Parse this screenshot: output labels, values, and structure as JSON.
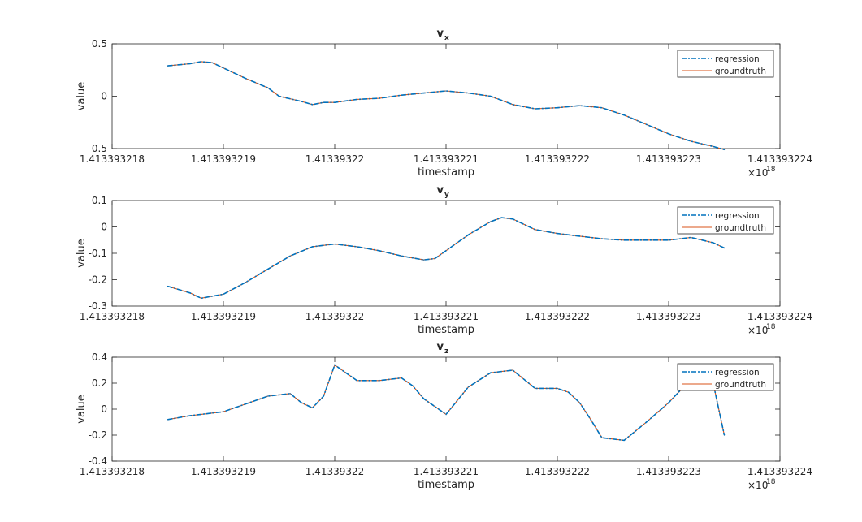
{
  "figure": {
    "background": "#ffffff",
    "axes_color": "#262626",
    "regression_color": "#0072bd",
    "groundtruth_color": "#d95319"
  },
  "chart_data": [
    {
      "type": "line",
      "title": "v",
      "title_subscript": "x",
      "xlabel": "timestamp",
      "ylabel": "value",
      "xlim": [
        1.413393218,
        1.413393224
      ],
      "ylim": [
        -0.5,
        0.5
      ],
      "xtick_labels": [
        "1.413393218",
        "1.413393219",
        "1.41339322",
        "1.413393221",
        "1.413393222",
        "1.413393223",
        "1.413393224"
      ],
      "ytick_labels": [
        "-0.5",
        "0",
        "0.5"
      ],
      "yticks": [
        -0.5,
        0,
        0.5
      ],
      "x_exponent_base": "×10",
      "x_exponent_power": "18",
      "legend": [
        "regression",
        "groundtruth"
      ],
      "legend_position": "top-right",
      "series": [
        {
          "name": "regression",
          "style": "dash-dot",
          "x": [
            1.4133932185,
            1.4133932187,
            1.4133932188,
            1.4133932189,
            1.413393219,
            1.4133932192,
            1.4133932194,
            1.4133932195,
            1.4133932197,
            1.4133932198,
            1.4133932199,
            1.41339322,
            1.4133932202,
            1.4133932204,
            1.4133932206,
            1.4133932208,
            1.413393221,
            1.4133932212,
            1.4133932214,
            1.4133932216,
            1.4133932218,
            1.413393222,
            1.4133932222,
            1.4133932224,
            1.4133932226,
            1.4133932228,
            1.413393223,
            1.4133932232,
            1.4133932234,
            1.4133932235
          ],
          "values": [
            0.29,
            0.31,
            0.33,
            0.32,
            0.27,
            0.17,
            0.08,
            0.0,
            -0.05,
            -0.08,
            -0.06,
            -0.06,
            -0.03,
            -0.02,
            0.01,
            0.03,
            0.05,
            0.03,
            0.0,
            -0.08,
            -0.12,
            -0.11,
            -0.09,
            -0.11,
            -0.18,
            -0.27,
            -0.36,
            -0.43,
            -0.48,
            -0.51
          ]
        },
        {
          "name": "groundtruth",
          "style": "solid",
          "x": [
            1.4133932185,
            1.4133932187,
            1.4133932188,
            1.4133932189,
            1.413393219,
            1.4133932192,
            1.4133932194,
            1.4133932195,
            1.4133932197,
            1.4133932198,
            1.4133932199,
            1.41339322,
            1.4133932202,
            1.4133932204,
            1.4133932206,
            1.4133932208,
            1.413393221,
            1.4133932212,
            1.4133932214,
            1.4133932216,
            1.4133932218,
            1.413393222,
            1.4133932222,
            1.4133932224,
            1.4133932226,
            1.4133932228,
            1.413393223,
            1.4133932232,
            1.4133932234,
            1.4133932235
          ],
          "values": [
            0.29,
            0.31,
            0.33,
            0.32,
            0.27,
            0.17,
            0.08,
            0.0,
            -0.05,
            -0.08,
            -0.06,
            -0.06,
            -0.03,
            -0.02,
            0.01,
            0.03,
            0.05,
            0.03,
            0.0,
            -0.08,
            -0.12,
            -0.11,
            -0.09,
            -0.11,
            -0.18,
            -0.27,
            -0.36,
            -0.43,
            -0.48,
            -0.51
          ]
        }
      ]
    },
    {
      "type": "line",
      "title": "v",
      "title_subscript": "y",
      "xlabel": "timestamp",
      "ylabel": "value",
      "xlim": [
        1.413393218,
        1.413393224
      ],
      "ylim": [
        -0.3,
        0.1
      ],
      "xtick_labels": [
        "1.413393218",
        "1.413393219",
        "1.41339322",
        "1.413393221",
        "1.413393222",
        "1.413393223",
        "1.413393224"
      ],
      "ytick_labels": [
        "-0.3",
        "-0.2",
        "-0.1",
        "0",
        "0.1"
      ],
      "yticks": [
        -0.3,
        -0.2,
        -0.1,
        0,
        0.1
      ],
      "x_exponent_base": "×10",
      "x_exponent_power": "18",
      "legend": [
        "regression",
        "groundtruth"
      ],
      "legend_position": "top-right",
      "series": [
        {
          "name": "regression",
          "style": "dash-dot",
          "x": [
            1.4133932185,
            1.4133932187,
            1.4133932188,
            1.413393219,
            1.4133932192,
            1.4133932194,
            1.4133932196,
            1.4133932198,
            1.41339322,
            1.4133932202,
            1.4133932204,
            1.4133932206,
            1.4133932208,
            1.4133932209,
            1.413393221,
            1.4133932212,
            1.4133932214,
            1.4133932215,
            1.4133932216,
            1.4133932218,
            1.413393222,
            1.4133932222,
            1.4133932224,
            1.4133932226,
            1.4133932228,
            1.413393223,
            1.4133932232,
            1.4133932234,
            1.4133932235
          ],
          "values": [
            -0.225,
            -0.25,
            -0.27,
            -0.255,
            -0.21,
            -0.16,
            -0.11,
            -0.075,
            -0.065,
            -0.075,
            -0.09,
            -0.11,
            -0.125,
            -0.12,
            -0.09,
            -0.03,
            0.02,
            0.035,
            0.03,
            -0.01,
            -0.025,
            -0.035,
            -0.045,
            -0.05,
            -0.05,
            -0.05,
            -0.04,
            -0.06,
            -0.08
          ]
        },
        {
          "name": "groundtruth",
          "style": "solid",
          "x": [
            1.4133932185,
            1.4133932187,
            1.4133932188,
            1.413393219,
            1.4133932192,
            1.4133932194,
            1.4133932196,
            1.4133932198,
            1.41339322,
            1.4133932202,
            1.4133932204,
            1.4133932206,
            1.4133932208,
            1.4133932209,
            1.413393221,
            1.4133932212,
            1.4133932214,
            1.4133932215,
            1.4133932216,
            1.4133932218,
            1.413393222,
            1.4133932222,
            1.4133932224,
            1.4133932226,
            1.4133932228,
            1.413393223,
            1.4133932232,
            1.4133932234,
            1.4133932235
          ],
          "values": [
            -0.225,
            -0.25,
            -0.27,
            -0.255,
            -0.21,
            -0.16,
            -0.11,
            -0.075,
            -0.065,
            -0.075,
            -0.09,
            -0.11,
            -0.125,
            -0.12,
            -0.09,
            -0.03,
            0.02,
            0.035,
            0.03,
            -0.01,
            -0.025,
            -0.035,
            -0.045,
            -0.05,
            -0.05,
            -0.05,
            -0.04,
            -0.06,
            -0.08
          ]
        }
      ]
    },
    {
      "type": "line",
      "title": "v",
      "title_subscript": "z",
      "xlabel": "timestamp",
      "ylabel": "value",
      "xlim": [
        1.413393218,
        1.413393224
      ],
      "ylim": [
        -0.4,
        0.4
      ],
      "xtick_labels": [
        "1.413393218",
        "1.413393219",
        "1.41339322",
        "1.413393221",
        "1.413393222",
        "1.413393223",
        "1.413393224"
      ],
      "ytick_labels": [
        "-0.4",
        "-0.2",
        "0",
        "0.2",
        "0.4"
      ],
      "yticks": [
        -0.4,
        -0.2,
        0,
        0.2,
        0.4
      ],
      "x_exponent_base": "×10",
      "x_exponent_power": "18",
      "legend": [
        "regression",
        "groundtruth"
      ],
      "legend_position": "top-right",
      "series": [
        {
          "name": "regression",
          "style": "dash-dot",
          "x": [
            1.4133932185,
            1.4133932187,
            1.4133932188,
            1.4133932189,
            1.413393219,
            1.4133932192,
            1.4133932194,
            1.4133932196,
            1.4133932197,
            1.4133932198,
            1.4133932199,
            1.41339322,
            1.4133932202,
            1.4133932204,
            1.4133932206,
            1.4133932207,
            1.4133932208,
            1.413393221,
            1.4133932212,
            1.4133932214,
            1.4133932216,
            1.4133932218,
            1.413393222,
            1.4133932221,
            1.4133932222,
            1.4133932223,
            1.4133932224,
            1.4133932226,
            1.4133932228,
            1.413393223,
            1.4133932232,
            1.4133932234,
            1.4133932235
          ],
          "values": [
            -0.08,
            -0.05,
            -0.04,
            -0.03,
            -0.02,
            0.04,
            0.1,
            0.12,
            0.05,
            0.01,
            0.1,
            0.34,
            0.22,
            0.22,
            0.24,
            0.18,
            0.08,
            -0.04,
            0.17,
            0.28,
            0.3,
            0.16,
            0.16,
            0.13,
            0.05,
            -0.08,
            -0.22,
            -0.24,
            -0.1,
            0.05,
            0.23,
            0.2,
            -0.2
          ]
        },
        {
          "name": "groundtruth",
          "style": "solid",
          "x": [
            1.4133932185,
            1.4133932187,
            1.4133932188,
            1.4133932189,
            1.413393219,
            1.4133932192,
            1.4133932194,
            1.4133932196,
            1.4133932197,
            1.4133932198,
            1.4133932199,
            1.41339322,
            1.4133932202,
            1.4133932204,
            1.4133932206,
            1.4133932207,
            1.4133932208,
            1.413393221,
            1.4133932212,
            1.4133932214,
            1.4133932216,
            1.4133932218,
            1.413393222,
            1.4133932221,
            1.4133932222,
            1.4133932223,
            1.4133932224,
            1.4133932226,
            1.4133932228,
            1.413393223,
            1.4133932232,
            1.4133932234,
            1.4133932235
          ],
          "values": [
            -0.08,
            -0.05,
            -0.04,
            -0.03,
            -0.02,
            0.04,
            0.1,
            0.12,
            0.05,
            0.01,
            0.1,
            0.34,
            0.22,
            0.22,
            0.24,
            0.18,
            0.08,
            -0.04,
            0.17,
            0.28,
            0.3,
            0.16,
            0.16,
            0.13,
            0.05,
            -0.08,
            -0.22,
            -0.24,
            -0.1,
            0.05,
            0.23,
            0.2,
            -0.2
          ]
        }
      ]
    }
  ]
}
